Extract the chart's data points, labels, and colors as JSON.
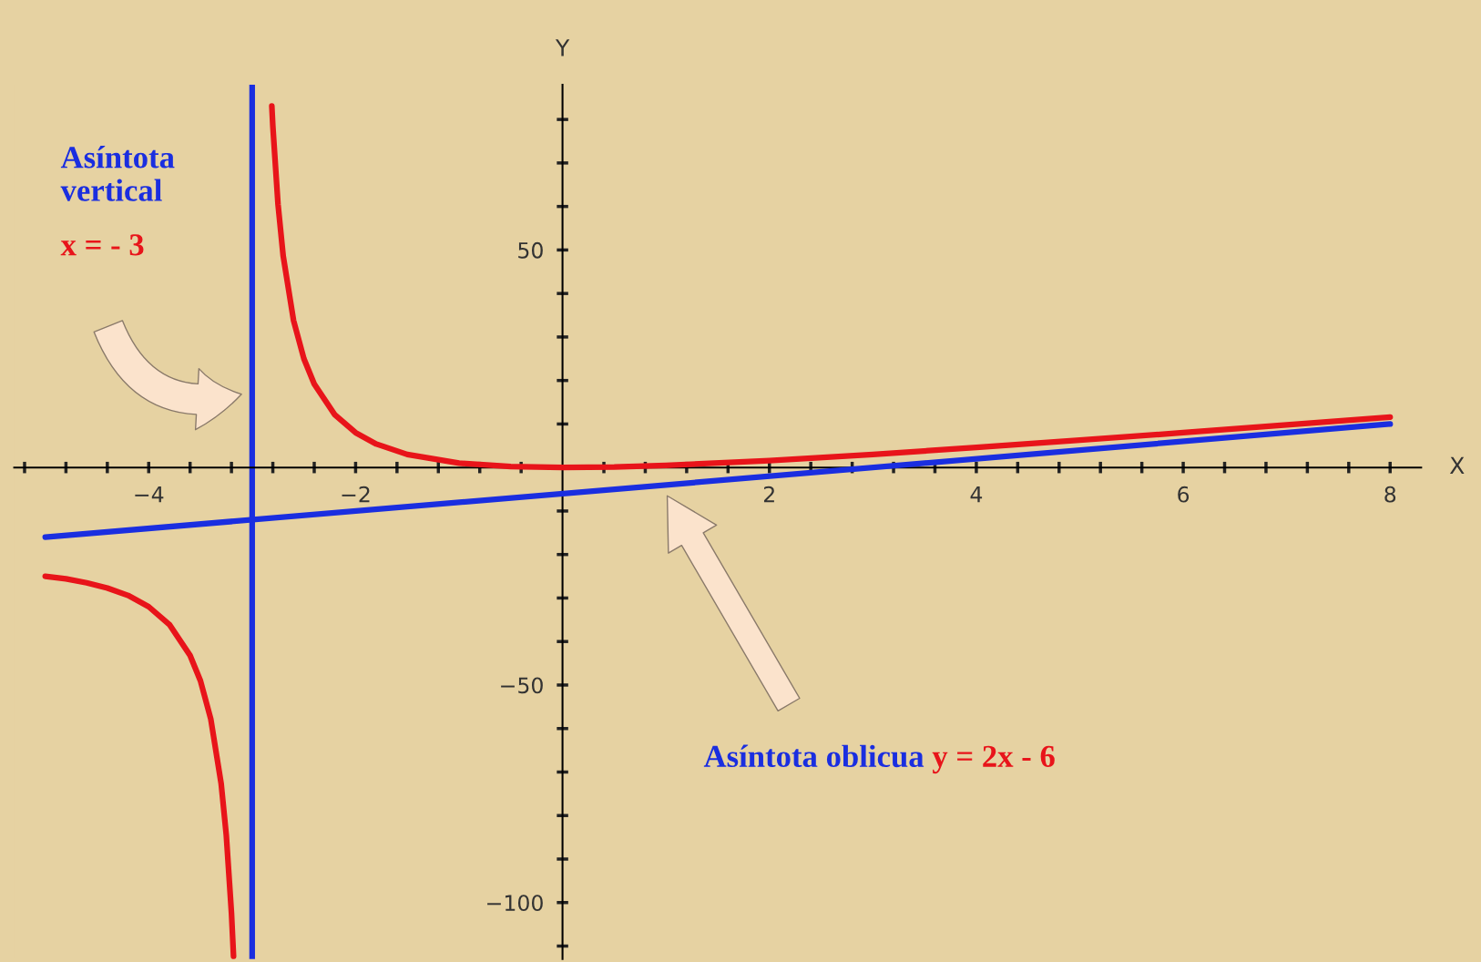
{
  "chart_data": {
    "type": "line",
    "xlabel": "X",
    "ylabel": "Y",
    "xlim": [
      -5.3,
      8.3
    ],
    "ylim": [
      -113,
      88
    ],
    "xticks": [
      {
        "value": -5.2,
        "label": null
      },
      {
        "value": -4.8,
        "label": null
      },
      {
        "value": -4.4,
        "label": null
      },
      -4,
      {
        "value": -3.6,
        "label": null
      },
      {
        "value": -3.2,
        "label": null
      },
      {
        "value": -2.8,
        "label": null
      },
      {
        "value": -2.4,
        "label": null
      },
      -2,
      {
        "value": -1.6,
        "label": null
      },
      {
        "value": -1.2,
        "label": null
      },
      {
        "value": -0.8,
        "label": null
      },
      {
        "value": -0.4,
        "label": null
      },
      {
        "value": 0.4,
        "label": null
      },
      {
        "value": 0.8,
        "label": null
      },
      {
        "value": 1.2,
        "label": null
      },
      {
        "value": 1.6,
        "label": null
      },
      2,
      {
        "value": 2.4,
        "label": null
      },
      {
        "value": 2.8,
        "label": null
      },
      {
        "value": 3.2,
        "label": null
      },
      {
        "value": 3.6,
        "label": null
      },
      4,
      {
        "value": 4.4,
        "label": null
      },
      {
        "value": 4.8,
        "label": null
      },
      {
        "value": 5.2,
        "label": null
      },
      {
        "value": 5.6,
        "label": null
      },
      6,
      {
        "value": 6.4,
        "label": null
      },
      {
        "value": 6.8,
        "label": null
      },
      {
        "value": 7.2,
        "label": null
      },
      {
        "value": 7.6,
        "label": null
      },
      8
    ],
    "yticks": [
      {
        "value": -110,
        "label": null
      },
      -100,
      {
        "value": -90,
        "label": null
      },
      {
        "value": -80,
        "label": null
      },
      {
        "value": -70,
        "label": null
      },
      {
        "value": -60,
        "label": null
      },
      -50,
      {
        "value": -40,
        "label": null
      },
      {
        "value": -30,
        "label": null
      },
      {
        "value": -20,
        "label": null
      },
      {
        "value": -10,
        "label": null
      },
      {
        "value": 10,
        "label": null
      },
      {
        "value": 20,
        "label": null
      },
      {
        "value": 30,
        "label": null
      },
      {
        "value": 40,
        "label": null
      },
      50,
      {
        "value": 60,
        "label": null
      },
      {
        "value": 70,
        "label": null
      },
      {
        "value": 80,
        "label": null
      }
    ],
    "grid": false,
    "marker": "none",
    "line_style": "solid",
    "series": [
      {
        "color": "#e8141a",
        "x": [
          -5.0,
          -4.8,
          -4.6,
          -4.4,
          -4.2,
          -4.0,
          -3.8,
          -3.6,
          -3.5,
          -3.4,
          -3.3,
          -3.25,
          -3.2,
          -3.18,
          -3.0,
          -2.81,
          -2.8,
          -2.75,
          -2.7,
          -2.6,
          -2.5,
          -2.4,
          -2.2,
          -2.0,
          -1.8,
          -1.5,
          -1.0,
          -0.5,
          0,
          0.5,
          1,
          2,
          3,
          4,
          5,
          6,
          7,
          8
        ],
        "values": [
          -25.0,
          -25.6,
          -26.5,
          -27.7,
          -29.4,
          -32.0,
          -36.1,
          -43.2,
          -49.0,
          -57.8,
          -72.6,
          -84.5,
          -102.4,
          -112.4,
          null,
          83.1,
          78.4,
          60.5,
          48.6,
          33.8,
          25.0,
          19.2,
          12.1,
          8.0,
          5.4,
          3.0,
          1.0,
          0.2,
          0,
          0.1,
          0.5,
          1.6,
          3.0,
          4.6,
          6.3,
          8.0,
          9.8,
          11.6
        ]
      },
      {
        "color": "#1a2ee0",
        "x": [
          -5.0,
          8.0
        ],
        "values": [
          -16,
          10
        ]
      }
    ],
    "ref_lines": [
      {
        "axis": "x",
        "value": -3,
        "color": "#1a2ee0"
      }
    ],
    "annotations": [
      "Asíntota\nvertical",
      "x = - 3",
      "Asíntota oblicua ",
      "y = 2x - 6"
    ]
  }
}
